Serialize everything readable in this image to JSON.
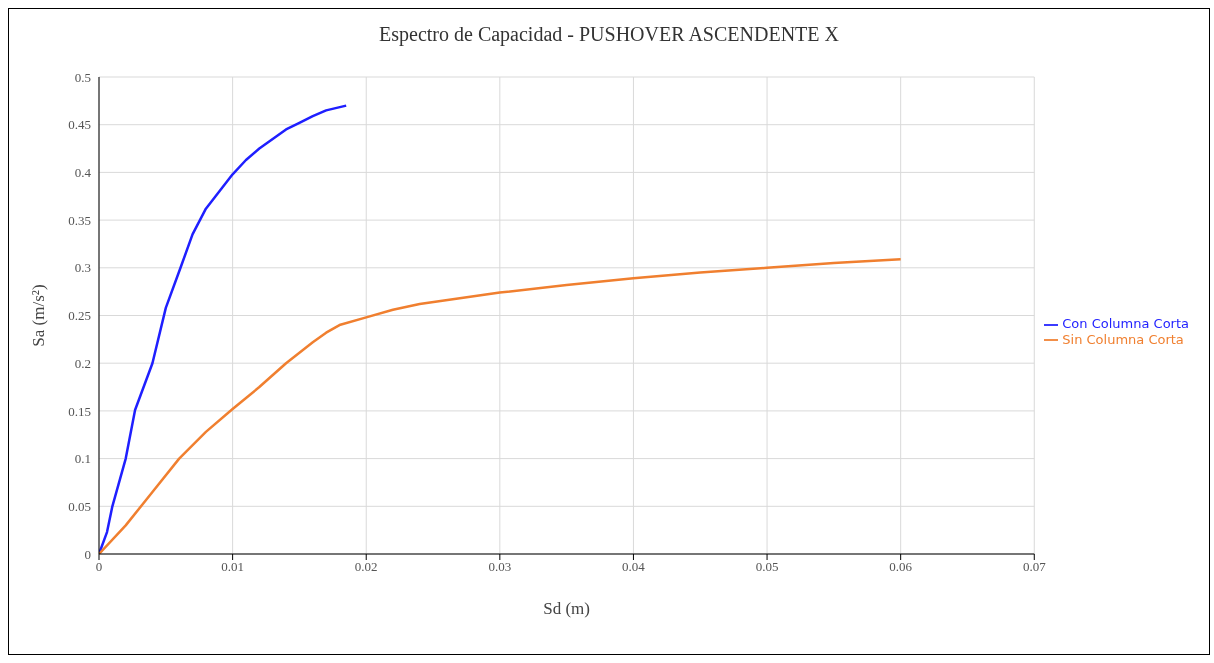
{
  "chart_data": {
    "type": "line",
    "title": "Espectro de Capacidad - PUSHOVER ASCENDENTE X",
    "xlabel": "Sd (m)",
    "ylabel": "Sa (m/s²)",
    "xlim": [
      0,
      0.07
    ],
    "xticks": [
      0,
      0.01,
      0.02,
      0.03,
      0.04,
      0.05,
      0.06,
      0.07
    ],
    "ylim": [
      0,
      0.5
    ],
    "yticks": [
      0,
      0.05,
      0.1,
      0.15,
      0.2,
      0.25,
      0.3,
      0.35,
      0.4,
      0.45,
      0.5
    ],
    "grid": true,
    "legend": "right",
    "marker": "none",
    "line_style": "solid",
    "series": [
      {
        "name": "Con Columna Corta",
        "color": "#1f1fff",
        "x": [
          0,
          0.0006,
          0.001,
          0.002,
          0.0027,
          0.004,
          0.005,
          0.0061,
          0.007,
          0.008,
          0.009,
          0.01,
          0.011,
          0.012,
          0.013,
          0.014,
          0.015,
          0.016,
          0.017,
          0.0185
        ],
        "values": [
          0,
          0.023,
          0.05,
          0.1,
          0.151,
          0.2,
          0.258,
          0.3,
          0.335,
          0.362,
          0.38,
          0.398,
          0.413,
          0.425,
          0.435,
          0.445,
          0.452,
          0.459,
          0.465,
          0.47
        ]
      },
      {
        "name": "Sin Columna Corta",
        "color": "#f07f2f",
        "x": [
          0,
          0.002,
          0.004,
          0.006,
          0.008,
          0.01,
          0.012,
          0.014,
          0.016,
          0.017,
          0.018,
          0.02,
          0.022,
          0.024,
          0.027,
          0.03,
          0.035,
          0.04,
          0.045,
          0.05,
          0.055,
          0.06
        ],
        "values": [
          0,
          0.03,
          0.065,
          0.1,
          0.128,
          0.152,
          0.175,
          0.2,
          0.222,
          0.232,
          0.24,
          0.248,
          0.256,
          0.262,
          0.268,
          0.274,
          0.282,
          0.289,
          0.295,
          0.3,
          0.305,
          0.309
        ]
      }
    ]
  }
}
